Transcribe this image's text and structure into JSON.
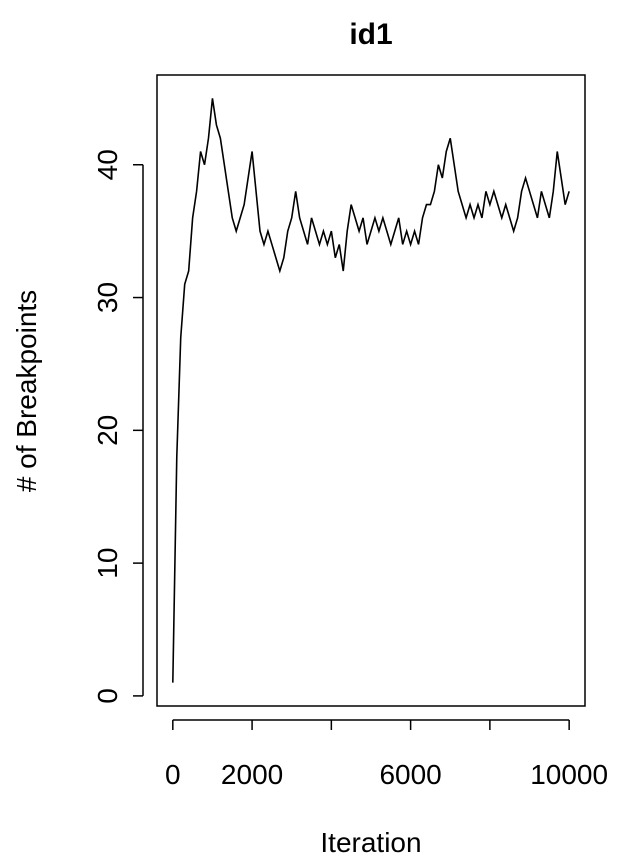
{
  "chart_data": {
    "type": "line",
    "title": "id1",
    "x_label": "Iteration",
    "y_label": "# of Breakpoints",
    "x": [
      0,
      100,
      200,
      300,
      400,
      500,
      600,
      700,
      800,
      900,
      1000,
      1100,
      1200,
      1300,
      1400,
      1500,
      1600,
      1700,
      1800,
      1900,
      2000,
      2100,
      2200,
      2300,
      2400,
      2500,
      2600,
      2700,
      2800,
      2900,
      3000,
      3100,
      3200,
      3300,
      3400,
      3500,
      3600,
      3700,
      3800,
      3900,
      4000,
      4100,
      4200,
      4300,
      4400,
      4500,
      4600,
      4700,
      4800,
      4900,
      5000,
      5100,
      5200,
      5300,
      5400,
      5500,
      5600,
      5700,
      5800,
      5900,
      6000,
      6100,
      6200,
      6300,
      6400,
      6500,
      6600,
      6700,
      6800,
      6900,
      7000,
      7100,
      7200,
      7300,
      7400,
      7500,
      7600,
      7700,
      7800,
      7900,
      8000,
      8100,
      8200,
      8300,
      8400,
      8500,
      8600,
      8700,
      8800,
      8900,
      9000,
      9100,
      9200,
      9300,
      9400,
      9500,
      9600,
      9700,
      9800,
      9900,
      10000
    ],
    "values": [
      1,
      18,
      27,
      31,
      32,
      36,
      38,
      41,
      40,
      42,
      45,
      43,
      42,
      40,
      38,
      36,
      35,
      36,
      37,
      39,
      41,
      38,
      35,
      34,
      35,
      34,
      33,
      32,
      33,
      35,
      36,
      38,
      36,
      35,
      34,
      36,
      35,
      34,
      35,
      34,
      35,
      33,
      34,
      32,
      35,
      37,
      36,
      35,
      36,
      34,
      35,
      36,
      35,
      36,
      35,
      34,
      35,
      36,
      34,
      35,
      34,
      35,
      34,
      36,
      37,
      37,
      38,
      40,
      39,
      41,
      42,
      40,
      38,
      37,
      36,
      37,
      36,
      37,
      36,
      38,
      37,
      38,
      37,
      36,
      37,
      36,
      35,
      36,
      38,
      39,
      38,
      37,
      36,
      38,
      37,
      36,
      38,
      41,
      39,
      37,
      38
    ],
    "color": "#000000",
    "xlim": [
      -399,
      10400
    ],
    "ylim": [
      -0.76,
      46.76
    ],
    "xticks": [
      0,
      2000,
      6000,
      10000
    ],
    "xticks_unlabeled": [
      4000,
      8000
    ],
    "yticks": [
      0,
      10,
      20,
      30,
      40
    ]
  }
}
